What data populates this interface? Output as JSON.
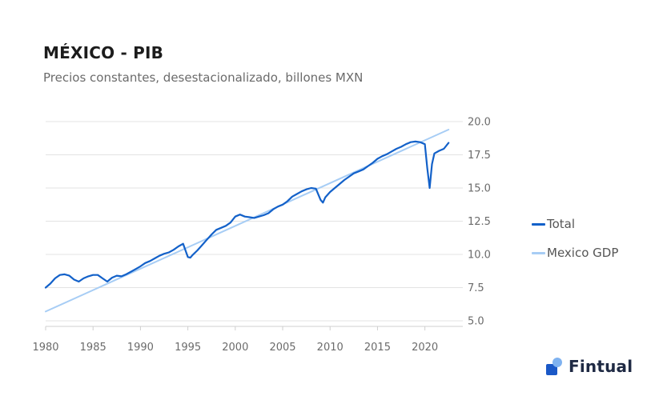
{
  "header": {
    "title": "MÉXICO - PIB",
    "subtitle": "Precios constantes, desestacionalizado, billones MXN"
  },
  "legend": {
    "items": [
      {
        "label": "Total",
        "color": "#1361c9"
      },
      {
        "label": "Mexico GDP",
        "color": "#a7cdf5"
      }
    ]
  },
  "brand": {
    "name": "Fintual",
    "logo_icon": "fintual-logo-icon",
    "logo_colors": [
      "#1a58c7",
      "#7fb2f0"
    ]
  },
  "chart_data": {
    "type": "line",
    "title": "MÉXICO - PIB",
    "subtitle": "Precios constantes, desestacionalizado, billones MXN",
    "xlim": [
      1980,
      2024
    ],
    "ylim": [
      5.0,
      20.0
    ],
    "xticks": [
      "1980",
      "1985",
      "1990",
      "1995",
      "2000",
      "2005",
      "2010",
      "2015",
      "2020"
    ],
    "yticks": [
      "5.0",
      "7.5",
      "10.0",
      "12.5",
      "15.0",
      "17.5",
      "20.0"
    ],
    "y_axis_position": "right",
    "grid": "horizontal",
    "legend_position": "right",
    "series": [
      {
        "name": "Total",
        "color": "#1361c9",
        "x": [
          1980.0,
          1980.5,
          1981.0,
          1981.5,
          1982.0,
          1982.5,
          1983.0,
          1983.5,
          1984.0,
          1984.5,
          1985.0,
          1985.5,
          1986.0,
          1986.5,
          1987.0,
          1987.5,
          1988.0,
          1988.5,
          1989.0,
          1989.5,
          1990.0,
          1990.5,
          1991.0,
          1991.5,
          1992.0,
          1992.5,
          1993.0,
          1993.5,
          1994.0,
          1994.5,
          1995.0,
          1995.25,
          1995.5,
          1996.0,
          1996.5,
          1997.0,
          1997.5,
          1998.0,
          1998.5,
          1999.0,
          1999.5,
          2000.0,
          2000.5,
          2001.0,
          2001.5,
          2002.0,
          2002.5,
          2003.0,
          2003.5,
          2004.0,
          2004.5,
          2005.0,
          2005.5,
          2006.0,
          2006.5,
          2007.0,
          2007.5,
          2008.0,
          2008.5,
          2009.0,
          2009.25,
          2009.5,
          2010.0,
          2010.5,
          2011.0,
          2011.5,
          2012.0,
          2012.5,
          2013.0,
          2013.5,
          2014.0,
          2014.5,
          2015.0,
          2015.5,
          2016.0,
          2016.5,
          2017.0,
          2017.5,
          2018.0,
          2018.5,
          2019.0,
          2019.5,
          2020.0,
          2020.25,
          2020.5,
          2020.75,
          2021.0,
          2021.5,
          2022.0,
          2022.5
        ],
        "values": [
          7.5,
          7.8,
          8.2,
          8.45,
          8.5,
          8.4,
          8.1,
          7.95,
          8.2,
          8.35,
          8.45,
          8.45,
          8.2,
          7.95,
          8.25,
          8.4,
          8.35,
          8.5,
          8.7,
          8.9,
          9.1,
          9.35,
          9.5,
          9.7,
          9.9,
          10.05,
          10.15,
          10.35,
          10.6,
          10.8,
          9.8,
          9.75,
          9.95,
          10.3,
          10.7,
          11.1,
          11.5,
          11.85,
          12.0,
          12.15,
          12.4,
          12.85,
          13.0,
          12.85,
          12.8,
          12.75,
          12.85,
          12.95,
          13.1,
          13.4,
          13.6,
          13.75,
          14.0,
          14.35,
          14.55,
          14.75,
          14.9,
          15.0,
          14.95,
          14.1,
          13.9,
          14.3,
          14.7,
          15.0,
          15.3,
          15.6,
          15.85,
          16.1,
          16.25,
          16.4,
          16.65,
          16.9,
          17.2,
          17.4,
          17.55,
          17.75,
          17.95,
          18.1,
          18.3,
          18.45,
          18.5,
          18.45,
          18.3,
          16.5,
          15.0,
          16.8,
          17.6,
          17.8,
          17.95,
          18.4
        ]
      },
      {
        "name": "Mexico GDP",
        "color": "#a7cdf5",
        "x": [
          1980.0,
          2022.5
        ],
        "values": [
          5.7,
          19.4
        ]
      }
    ]
  }
}
